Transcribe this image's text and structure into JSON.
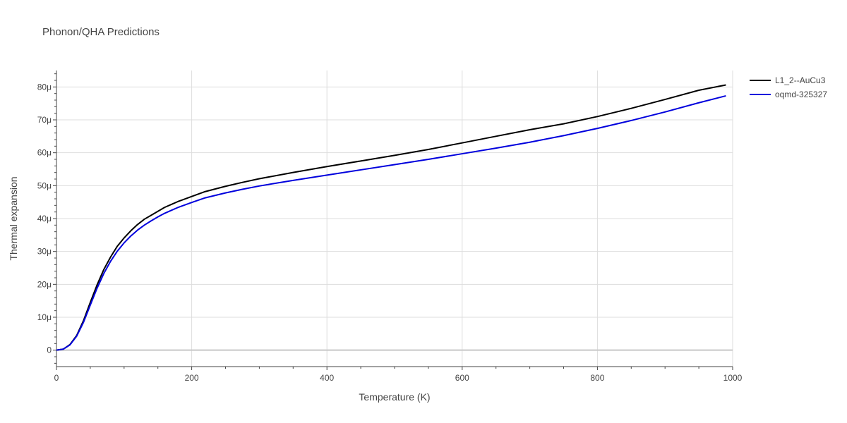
{
  "chart_data": {
    "type": "line",
    "title": "Phonon/QHA Predictions",
    "xlabel": "Temperature (K)",
    "ylabel": "Thermal expansion",
    "xlim": [
      0,
      1000
    ],
    "ylim": [
      -5e-06,
      8.5e-05
    ],
    "x_ticks": [
      0,
      200,
      400,
      600,
      800,
      1000
    ],
    "x_tick_labels": [
      "0",
      "200",
      "400",
      "600",
      "800",
      "1000"
    ],
    "y_ticks": [
      0,
      1e-05,
      2e-05,
      3e-05,
      4e-05,
      5e-05,
      6e-05,
      7e-05,
      8e-05
    ],
    "y_tick_labels": [
      "0",
      "10μ",
      "20μ",
      "30μ",
      "40μ",
      "50μ",
      "60μ",
      "70μ",
      "80μ"
    ],
    "grid": true,
    "legend_position": "top-right",
    "series": [
      {
        "name": "L1_2--AuCu3",
        "color": "#000000",
        "x": [
          0,
          10,
          20,
          30,
          40,
          50,
          60,
          70,
          80,
          90,
          100,
          110,
          120,
          130,
          140,
          150,
          160,
          170,
          180,
          200,
          220,
          250,
          275,
          300,
          350,
          400,
          450,
          500,
          550,
          600,
          650,
          700,
          750,
          800,
          850,
          900,
          950,
          990
        ],
        "y": [
          0,
          3e-07,
          1.7e-06,
          4.5e-06,
          9e-06,
          1.45e-05,
          1.98e-05,
          2.45e-05,
          2.83e-05,
          3.16e-05,
          3.41e-05,
          3.63e-05,
          3.82e-05,
          3.98e-05,
          4.1e-05,
          4.22e-05,
          4.34e-05,
          4.43e-05,
          4.52e-05,
          4.67e-05,
          4.82e-05,
          4.98e-05,
          5.1e-05,
          5.21e-05,
          5.4e-05,
          5.58e-05,
          5.75e-05,
          5.92e-05,
          6.1e-05,
          6.3e-05,
          6.5e-05,
          6.7e-05,
          6.88e-05,
          7.1e-05,
          7.35e-05,
          7.62e-05,
          7.9e-05,
          8.06e-05
        ]
      },
      {
        "name": "oqmd-325327",
        "color": "#0000dd",
        "x": [
          0,
          10,
          20,
          30,
          40,
          50,
          60,
          70,
          80,
          90,
          100,
          110,
          120,
          130,
          140,
          150,
          160,
          170,
          180,
          200,
          220,
          250,
          275,
          300,
          350,
          400,
          450,
          500,
          550,
          600,
          650,
          700,
          750,
          800,
          850,
          900,
          950,
          990
        ],
        "y": [
          0,
          3e-07,
          1.6e-06,
          4.3e-06,
          8.5e-06,
          1.37e-05,
          1.88e-05,
          2.33e-05,
          2.7e-05,
          3.01e-05,
          3.26e-05,
          3.47e-05,
          3.65e-05,
          3.8e-05,
          3.93e-05,
          4.05e-05,
          4.16e-05,
          4.25e-05,
          4.34e-05,
          4.49e-05,
          4.63e-05,
          4.78e-05,
          4.89e-05,
          4.99e-05,
          5.16e-05,
          5.32e-05,
          5.48e-05,
          5.64e-05,
          5.8e-05,
          5.97e-05,
          6.14e-05,
          6.32e-05,
          6.52e-05,
          6.74e-05,
          6.98e-05,
          7.24e-05,
          7.52e-05,
          7.73e-05
        ]
      }
    ]
  }
}
